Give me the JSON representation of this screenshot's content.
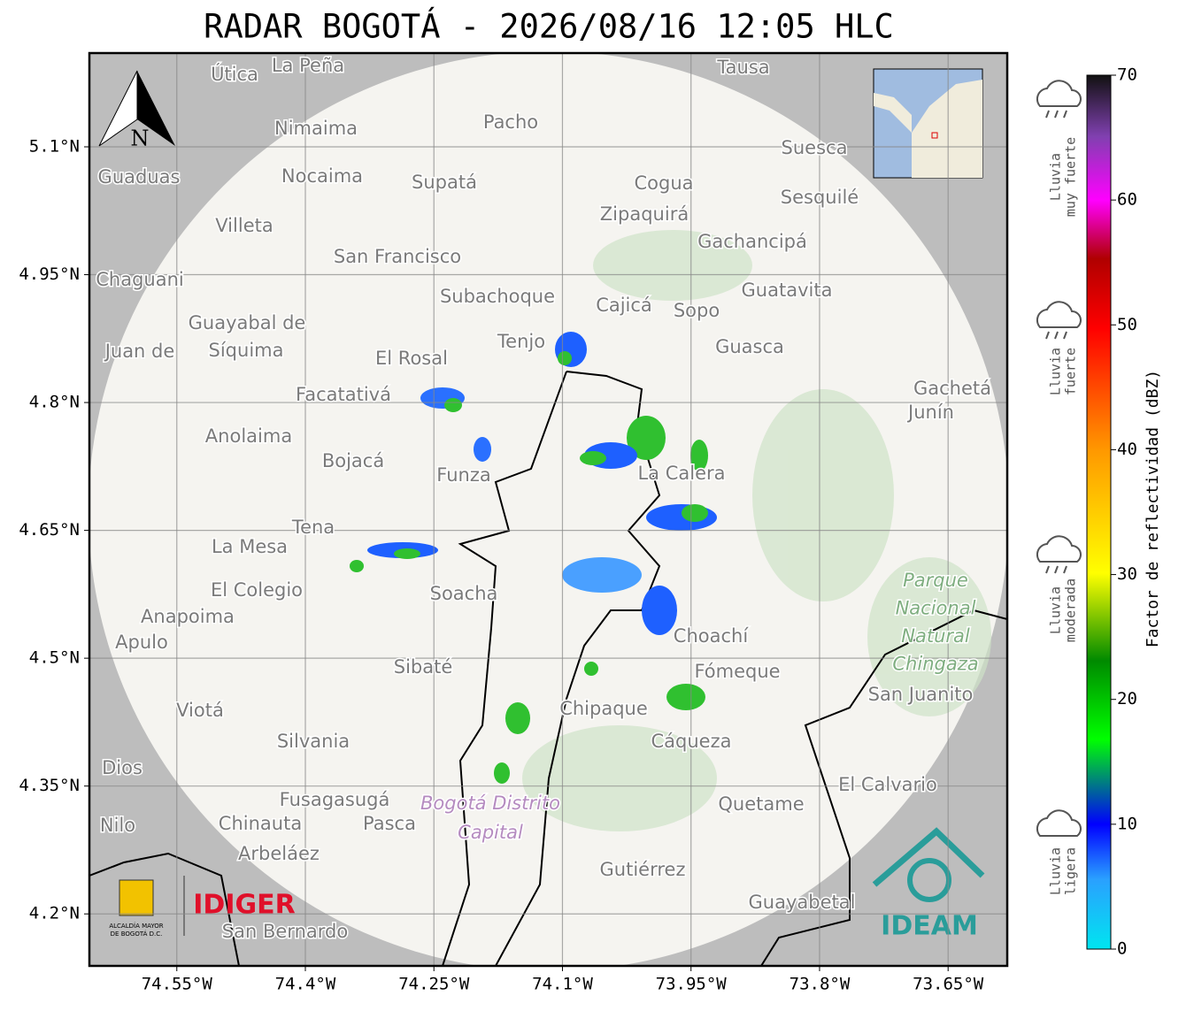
{
  "title": "RADAR BOGOTÁ - 2026/08/16 12:05 HLC",
  "map": {
    "xlim": [
      -74.652,
      -73.581
    ],
    "ylim": [
      4.139,
      5.21
    ],
    "xticks": [
      {
        "value": -74.55,
        "label": "74.55°W"
      },
      {
        "value": -74.4,
        "label": "74.4°W"
      },
      {
        "value": -74.25,
        "label": "74.25°W"
      },
      {
        "value": -74.1,
        "label": "74.1°W"
      },
      {
        "value": -73.95,
        "label": "73.95°W"
      },
      {
        "value": -73.8,
        "label": "73.8°W"
      },
      {
        "value": -73.65,
        "label": "73.65°W"
      }
    ],
    "yticks": [
      {
        "value": 5.1,
        "label": "5.1°N"
      },
      {
        "value": 4.95,
        "label": "4.95°N"
      },
      {
        "value": 4.8,
        "label": "4.8°N"
      },
      {
        "value": 4.65,
        "label": "4.65°N"
      },
      {
        "value": 4.5,
        "label": "4.5°N"
      },
      {
        "value": 4.35,
        "label": "4.35°N"
      },
      {
        "value": 4.2,
        "label": "4.2°N"
      }
    ],
    "grid": true,
    "north_label": "N",
    "places": [
      "Útica",
      "La Peña",
      "Tausa",
      "Nimaima",
      "Pacho",
      "Suesca",
      "Guaduas",
      "Nocaima",
      "Supatá",
      "Cogua",
      "Sesquilé",
      "Villeta",
      "Zipaquirá",
      "Gachancipá",
      "San Francisco",
      "Chaguani",
      "Subachoque",
      "Cajicá",
      "Sopo",
      "Guatavita",
      "Guayabal de",
      "Síquima",
      "Tenjo",
      "Guasca",
      "El Rosal",
      "Juan de",
      "Facatativá",
      "Gachetá",
      "Junín",
      "Anolaima",
      "Bojacá",
      "Funza",
      "La Calera",
      "Tena",
      "La Mesa",
      "El Colegio",
      "Soacha",
      "Anapoima",
      "Apulo",
      "Choachí",
      "Sibaté",
      "Fómeque",
      "San Juanito",
      "Viotá",
      "Chipaque",
      "Silvania",
      "Cáqueza",
      "Dios",
      "El Calvario",
      "Fusagasugá",
      "Quetame",
      "Nilo",
      "Chinauta",
      "Pasca",
      "Arbeláez",
      "Gutiérrez",
      "Guayabetal",
      "San Bernardo"
    ],
    "park": [
      "Parque",
      "Nacional",
      "Natural",
      "Chingaza"
    ],
    "district": [
      "Bogotá Distrito",
      "Capital"
    ]
  },
  "colorbar": {
    "label": "Factor de reflectividad (dBZ)",
    "lim": [
      0,
      70
    ],
    "ticks": [
      0,
      10,
      20,
      30,
      40,
      50,
      60,
      70
    ],
    "rain_classes": [
      [
        "Lluvia",
        "muy fuerte"
      ],
      [
        "Lluvia",
        "fuerte"
      ],
      [
        "Lluvia",
        "moderada"
      ],
      [
        "Lluvia",
        "ligera"
      ]
    ]
  },
  "logos": {
    "alcaldia": [
      "ALCALDÍA MAYOR",
      "DE BOGOTÁ D.C."
    ],
    "idiger": "IDIGER",
    "ideam": "IDEAM"
  }
}
